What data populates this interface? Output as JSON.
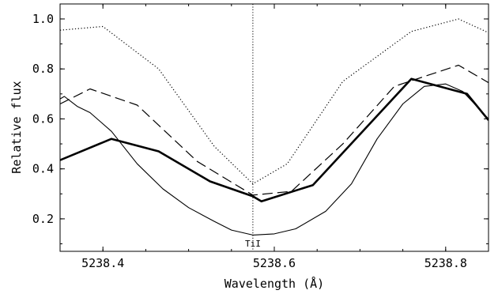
{
  "chart_data": {
    "type": "line",
    "xlabel": "Wavelength (Å)",
    "ylabel": "Relative flux",
    "xlim": [
      5238.35,
      5238.85
    ],
    "ylim": [
      0.07,
      1.06
    ],
    "x_ticks": [
      5238.4,
      5238.6,
      5238.8
    ],
    "x_tick_labels": [
      "5238.4",
      "5238.6",
      "5238.8"
    ],
    "y_ticks": [
      0.2,
      0.4,
      0.6,
      0.8,
      1.0
    ],
    "y_tick_labels": [
      "0.2",
      "0.4",
      "0.6",
      "0.8",
      "1.0"
    ],
    "grid": false,
    "annotations": [
      {
        "text": "TiI",
        "x": 5238.575,
        "style": "dotted vertical line"
      }
    ],
    "series": [
      {
        "style": "dotted",
        "x": [
          5238.35,
          5238.4,
          5238.465,
          5238.53,
          5238.575,
          5238.615,
          5238.68,
          5238.76,
          5238.815,
          5238.85
        ],
        "y": [
          0.955,
          0.97,
          0.8,
          0.49,
          0.34,
          0.42,
          0.75,
          0.95,
          1.0,
          0.945
        ]
      },
      {
        "style": "dashed",
        "x": [
          5238.35,
          5238.385,
          5238.44,
          5238.51,
          5238.575,
          5238.62,
          5238.68,
          5238.74,
          5238.815,
          5238.85
        ],
        "y": [
          0.66,
          0.72,
          0.655,
          0.43,
          0.295,
          0.31,
          0.5,
          0.73,
          0.815,
          0.745
        ]
      },
      {
        "style": "solid-thick",
        "x": [
          5238.35,
          5238.41,
          5238.465,
          5238.525,
          5238.575,
          5238.585,
          5238.645,
          5238.76,
          5238.825,
          5238.85
        ],
        "y": [
          0.435,
          0.52,
          0.47,
          0.35,
          0.29,
          0.27,
          0.335,
          0.76,
          0.7,
          0.595
        ]
      },
      {
        "style": "solid-thin",
        "x": [
          5238.35,
          5238.355,
          5238.37,
          5238.385,
          5238.41,
          5238.44,
          5238.47,
          5238.5,
          5238.53,
          5238.55,
          5238.575,
          5238.6,
          5238.625,
          5238.66,
          5238.69,
          5238.72,
          5238.75,
          5238.775,
          5238.8,
          5238.82,
          5238.85
        ],
        "y": [
          0.68,
          0.69,
          0.65,
          0.625,
          0.55,
          0.42,
          0.32,
          0.245,
          0.19,
          0.155,
          0.135,
          0.14,
          0.16,
          0.23,
          0.34,
          0.52,
          0.66,
          0.73,
          0.74,
          0.71,
          0.6
        ]
      }
    ]
  }
}
